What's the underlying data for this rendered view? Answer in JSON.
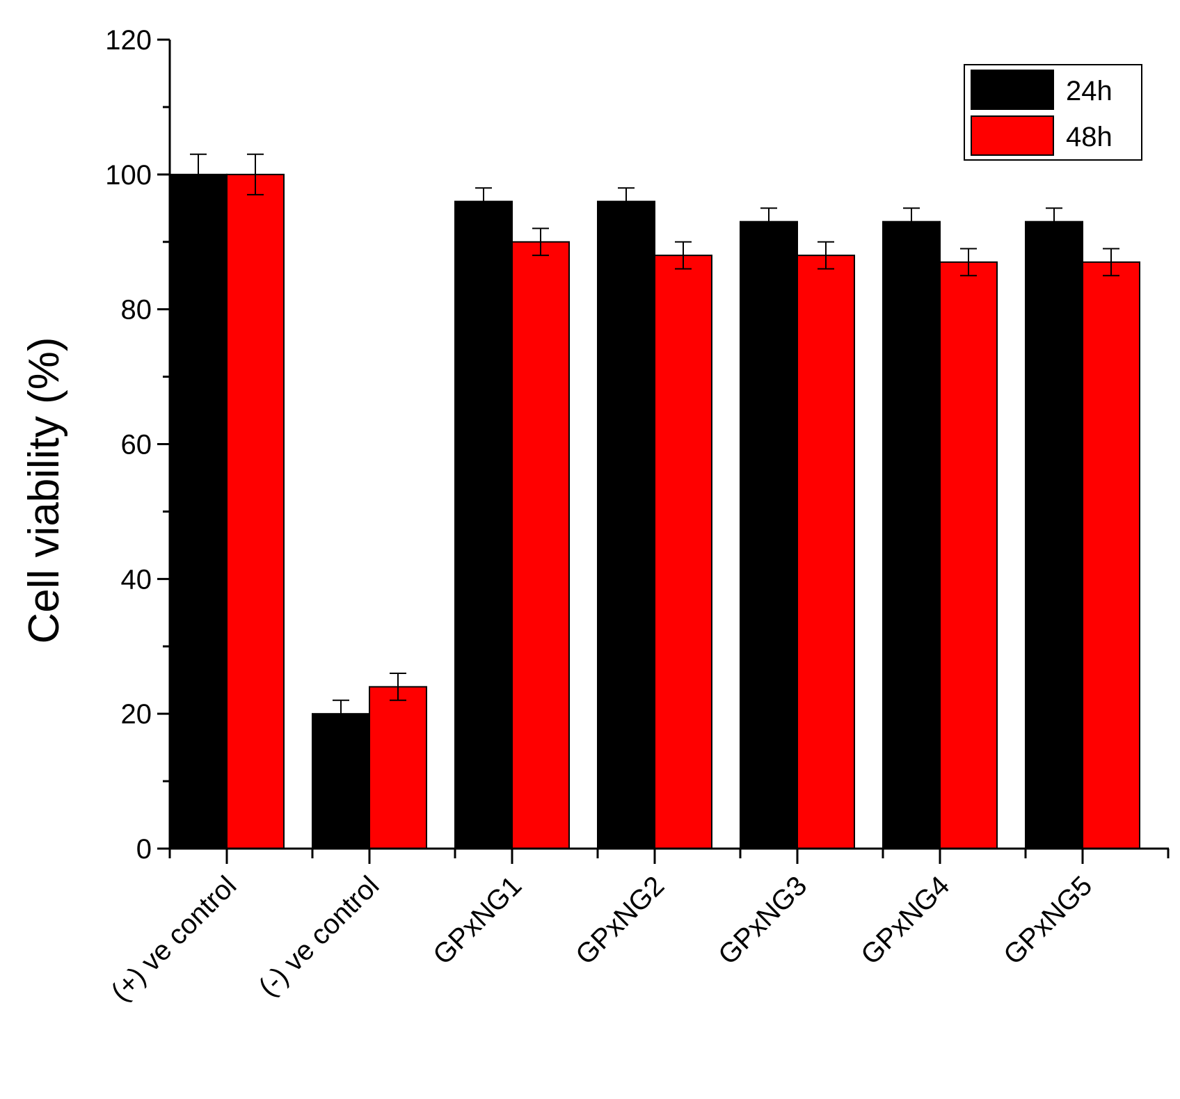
{
  "chart_data": {
    "type": "bar",
    "title": "",
    "xlabel": "",
    "ylabel": "Cell viability (%)",
    "ylim": [
      0,
      120
    ],
    "yticks": [
      0,
      20,
      40,
      60,
      80,
      100,
      120
    ],
    "y_minor_step": 10,
    "grid": false,
    "legend_position": "top-right",
    "categories": [
      "(+) ve control",
      "(-) ve control",
      "GPxNG1",
      "GPxNG2",
      "GPxNG3",
      "GPxNG4",
      "GPxNG5"
    ],
    "series": [
      {
        "name": "24h",
        "color": "#000000",
        "values": [
          100,
          20,
          96,
          96,
          93,
          93,
          93
        ],
        "errors": [
          3,
          2,
          2,
          2,
          2,
          2,
          2
        ]
      },
      {
        "name": "48h",
        "color": "#ff0000",
        "values": [
          100,
          24,
          90,
          88,
          88,
          87,
          87
        ],
        "errors": [
          3,
          2,
          2,
          2,
          2,
          2,
          2
        ]
      }
    ]
  }
}
